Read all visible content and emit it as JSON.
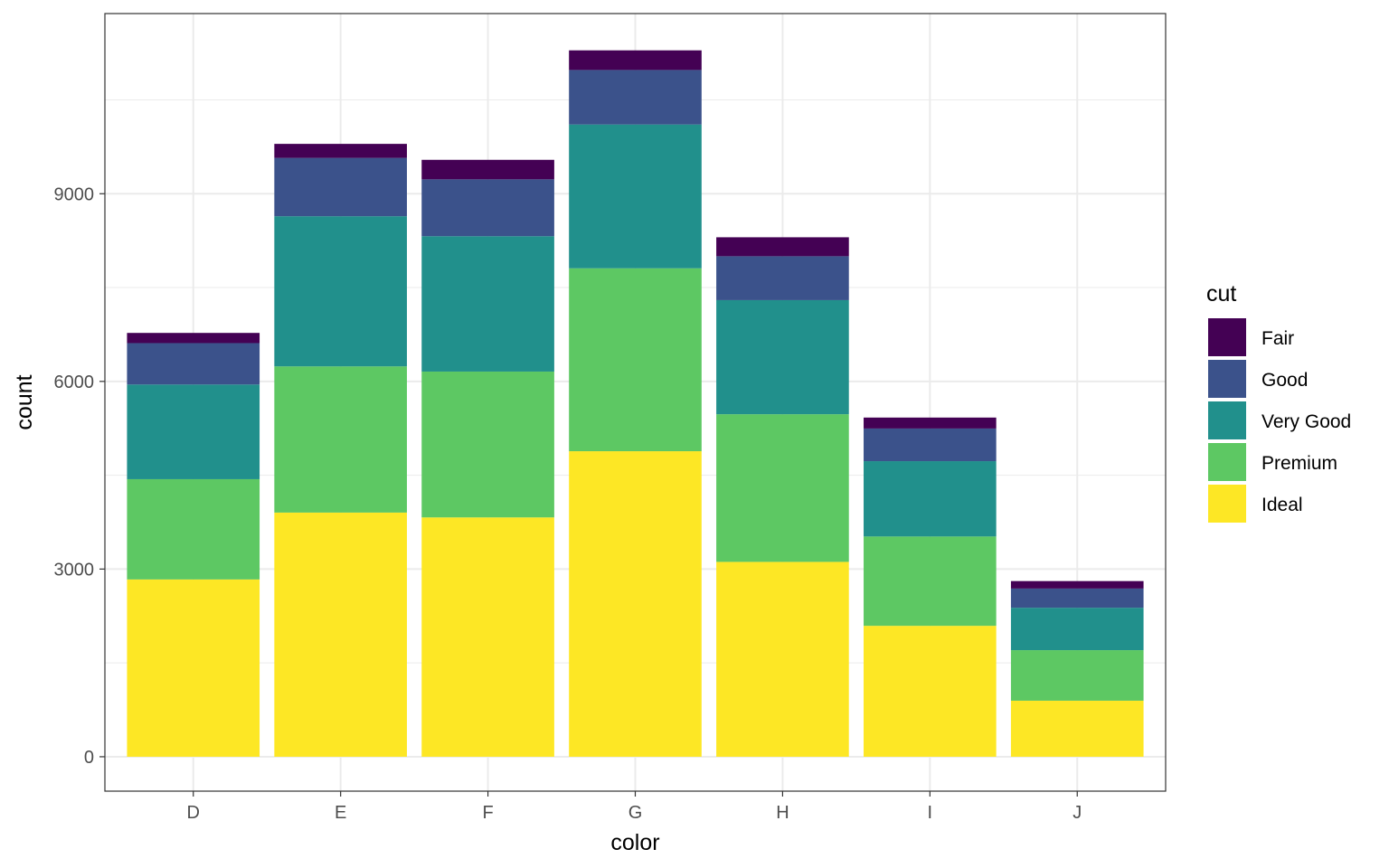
{
  "chart_data": {
    "type": "bar",
    "stacked": true,
    "categories": [
      "D",
      "E",
      "F",
      "G",
      "H",
      "I",
      "J"
    ],
    "xlabel": "color",
    "ylabel": "count",
    "ylim": [
      -550,
      11880
    ],
    "yticks": [
      0,
      3000,
      6000,
      9000
    ],
    "grid": true,
    "legend": {
      "title": "cut",
      "position": "right"
    },
    "series": [
      {
        "name": "Fair",
        "color": "#440154",
        "values": [
          163,
          224,
          312,
          314,
          303,
          175,
          119
        ]
      },
      {
        "name": "Good",
        "color": "#3B528B",
        "values": [
          662,
          933,
          909,
          871,
          702,
          522,
          307
        ]
      },
      {
        "name": "Very Good",
        "color": "#21908C",
        "values": [
          1513,
          2400,
          2164,
          2299,
          1824,
          1204,
          678
        ]
      },
      {
        "name": "Premium",
        "color": "#5DC863",
        "values": [
          1603,
          2337,
          2331,
          2924,
          2360,
          1428,
          808
        ]
      },
      {
        "name": "Ideal",
        "color": "#FDE725",
        "values": [
          2834,
          3903,
          3826,
          4884,
          3115,
          2093,
          896
        ]
      }
    ]
  }
}
